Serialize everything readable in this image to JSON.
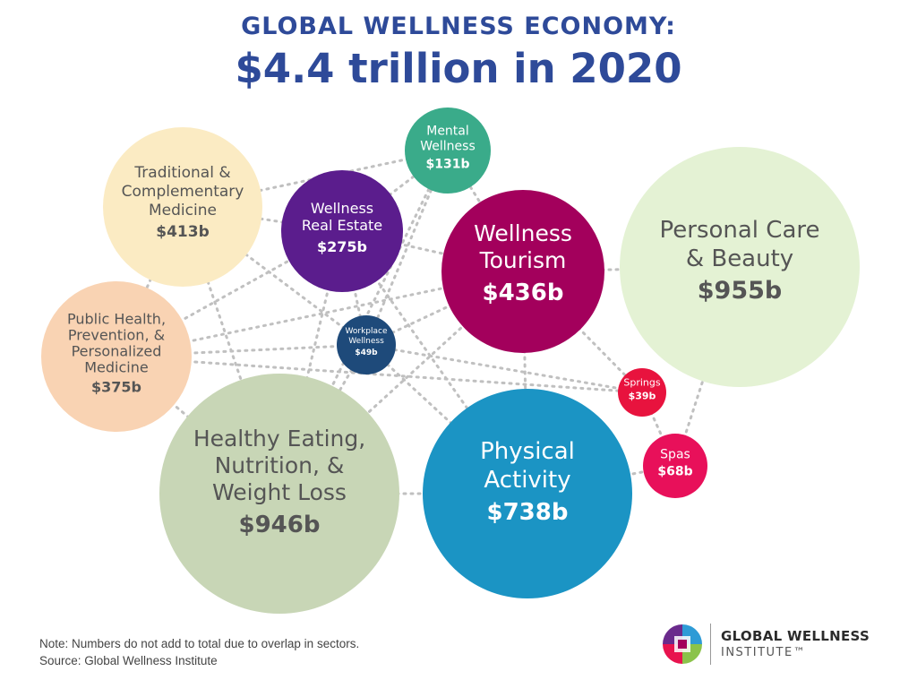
{
  "header": {
    "line1": "GLOBAL WELLNESS ECONOMY:",
    "line2": "$4.4 trillion in 2020"
  },
  "chart_data": {
    "type": "bubble",
    "unit": "$ billions",
    "title": "GLOBAL WELLNESS ECONOMY: $4.4 trillion in 2020",
    "total_label": "$4.4 trillion",
    "year": 2020,
    "sectors": [
      {
        "name_lines": [
          "Personal Care",
          "& Beauty"
        ],
        "label": "$955b",
        "value": 955,
        "color": "#e4f2d4",
        "text_color": "#555555"
      },
      {
        "name_lines": [
          "Healthy Eating,",
          "Nutrition, &",
          "Weight Loss"
        ],
        "label": "$946b",
        "value": 946,
        "color": "#c8d6b6",
        "text_color": "#555555"
      },
      {
        "name_lines": [
          "Physical",
          "Activity"
        ],
        "label": "$738b",
        "value": 738,
        "color": "#1b94c4",
        "text_color": "#ffffff"
      },
      {
        "name_lines": [
          "Wellness",
          "Tourism"
        ],
        "label": "$436b",
        "value": 436,
        "color": "#a3005c",
        "text_color": "#ffffff"
      },
      {
        "name_lines": [
          "Traditional &",
          "Complementary",
          "Medicine"
        ],
        "label": "$413b",
        "value": 413,
        "color": "#fbebc3",
        "text_color": "#555555"
      },
      {
        "name_lines": [
          "Public Health,",
          "Prevention, &",
          "Personalized",
          "Medicine"
        ],
        "label": "$375b",
        "value": 375,
        "color": "#f9d3b3",
        "text_color": "#555555"
      },
      {
        "name_lines": [
          "Wellness",
          "Real Estate"
        ],
        "label": "$275b",
        "value": 275,
        "color": "#5b1d8d",
        "text_color": "#ffffff"
      },
      {
        "name_lines": [
          "Mental",
          "Wellness"
        ],
        "label": "$131b",
        "value": 131,
        "color": "#3aab8a",
        "text_color": "#ffffff"
      },
      {
        "name_lines": [
          "Spas"
        ],
        "label": "$68b",
        "value": 68,
        "color": "#e8105a",
        "text_color": "#ffffff"
      },
      {
        "name_lines": [
          "Workplace",
          "Wellness"
        ],
        "label": "$49b",
        "value": 49,
        "color": "#1e4a7a",
        "text_color": "#ffffff"
      },
      {
        "name_lines": [
          "Springs"
        ],
        "label": "$39b",
        "value": 39,
        "color": "#e8133e",
        "text_color": "#ffffff"
      }
    ]
  },
  "footer": {
    "note": "Note: Numbers do not add to total due to overlap in sectors.",
    "source": "Source: Global Wellness Institute"
  },
  "logo": {
    "name": "GLOBAL WELLNESS",
    "sub": "INSTITUTE™",
    "icon": "gwi-logo-icon"
  },
  "colors": {
    "title": "#2e4a99",
    "connector": "#c0c0c0"
  }
}
